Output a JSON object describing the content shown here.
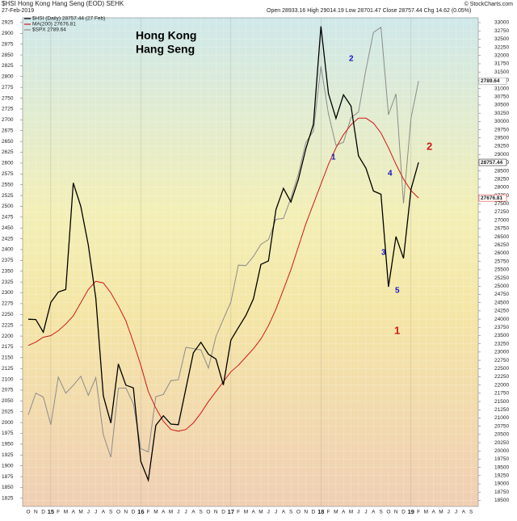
{
  "chart_data": {
    "type": "line",
    "symbol": "$HSI Hong Kong Hang Seng (EOD) SEHK",
    "date": "27-Feb-2019",
    "source": "© StockCharts.com",
    "quote": "Open 28933.16  High 29014.19  Low 28701.47  Close 28757.44  Chg 14.62 (0.05%)",
    "annotations": [
      {
        "text": "Hong Kong",
        "color": "#000000"
      },
      {
        "text": "Hang Seng",
        "color": "#000000"
      },
      {
        "text": "1",
        "color": "#1515c8"
      },
      {
        "text": "2",
        "color": "#1515c8"
      },
      {
        "text": "3",
        "color": "#1515c8"
      },
      {
        "text": "4",
        "color": "#1515c8"
      },
      {
        "text": "5",
        "color": "#1515c8"
      },
      {
        "text": "1",
        "color": "#d01818"
      },
      {
        "text": "2",
        "color": "#d01818"
      }
    ],
    "categories": [
      "O",
      "N",
      "D",
      "15",
      "F",
      "M",
      "A",
      "M",
      "J",
      "J",
      "A",
      "S",
      "O",
      "N",
      "D",
      "16",
      "F",
      "M",
      "A",
      "M",
      "J",
      "J",
      "A",
      "S",
      "O",
      "N",
      "D",
      "17",
      "F",
      "M",
      "A",
      "M",
      "J",
      "J",
      "A",
      "S",
      "O",
      "N",
      "D",
      "18",
      "F",
      "M",
      "A",
      "M",
      "J",
      "J",
      "A",
      "S",
      "O",
      "N",
      "D",
      "19",
      "F",
      "M",
      "A",
      "M",
      "J",
      "J",
      "A",
      "S"
    ],
    "series": [
      {
        "name": "$HSI (Daily) 28757.44 (27 Feb)",
        "color": "#000000",
        "axis": "y2",
        "end_label": "28757.44",
        "values": [
          23998,
          23987,
          23605,
          24507,
          24823,
          24900,
          28133,
          27424,
          26250,
          24636,
          21671,
          20846,
          22640,
          21996,
          21914,
          19683,
          19112,
          20777,
          21067,
          20815,
          20794,
          21891,
          22977,
          23297,
          22935,
          22790,
          22001,
          23361,
          23741,
          24112,
          24615,
          25661,
          25765,
          27324,
          27970,
          27554,
          28246,
          29177,
          29919,
          32887,
          30845,
          30093,
          30808,
          30469,
          28955,
          28583,
          27889,
          27789,
          24980,
          26507,
          25846,
          27942,
          28757.44,
          null,
          null,
          null,
          null,
          null,
          null,
          null
        ]
      },
      {
        "name": "MA(200) 27676.81",
        "color": "#d01818",
        "axis": "y2",
        "end_label": "27676.81",
        "values": [
          23200,
          23300,
          23450,
          23500,
          23650,
          23850,
          24100,
          24500,
          24900,
          25150,
          25100,
          24800,
          24400,
          23950,
          23300,
          22600,
          21800,
          21300,
          20900,
          20650,
          20600,
          20650,
          20850,
          21150,
          21500,
          21800,
          22100,
          22400,
          22600,
          22850,
          23100,
          23400,
          23800,
          24300,
          24900,
          25500,
          26200,
          26900,
          27500,
          28100,
          28700,
          29200,
          29600,
          29900,
          30100,
          30100,
          29950,
          29650,
          29200,
          28700,
          28250,
          27900,
          27676.81,
          null,
          null,
          null,
          null,
          null,
          null,
          null
        ]
      },
      {
        "name": "$SPX 2789.64",
        "color": "#8c8c8c",
        "axis": "y",
        "end_label": "2789.64",
        "values": [
          2018,
          2068,
          2059,
          1995,
          2105,
          2068,
          2086,
          2107,
          2063,
          2104,
          1972,
          1920,
          2079,
          2080,
          2044,
          1940,
          1932,
          2060,
          2065,
          2097,
          2099,
          2174,
          2171,
          2168,
          2126,
          2199,
          2239,
          2279,
          2364,
          2363,
          2384,
          2412,
          2423,
          2470,
          2472,
          2519,
          2575,
          2648,
          2674,
          2824,
          2714,
          2641,
          2648,
          2705,
          2718,
          2816,
          2902,
          2914,
          2712,
          2760,
          2507,
          2704,
          2789.64,
          null,
          null,
          null,
          null,
          null,
          null,
          null
        ]
      }
    ],
    "ylim": [
      1806,
      2936
    ],
    "yticks": [
      1825,
      1850,
      1875,
      1900,
      1925,
      1950,
      1975,
      2000,
      2025,
      2050,
      2075,
      2100,
      2125,
      2150,
      2175,
      2200,
      2225,
      2250,
      2275,
      2300,
      2325,
      2350,
      2375,
      2400,
      2425,
      2450,
      2475,
      2500,
      2525,
      2550,
      2575,
      2600,
      2625,
      2650,
      2675,
      2700,
      2725,
      2750,
      2775,
      2800,
      2825,
      2850,
      2875,
      2900,
      2925
    ],
    "y2lim": [
      18314,
      33147
    ],
    "y2ticks": [
      18500,
      18750,
      19000,
      19250,
      19500,
      19750,
      20000,
      20250,
      20500,
      20750,
      21000,
      21250,
      21500,
      21750,
      22000,
      22250,
      22500,
      22750,
      23000,
      23250,
      23500,
      23750,
      24000,
      24250,
      24500,
      24750,
      25000,
      25250,
      25500,
      25750,
      26000,
      26250,
      26500,
      26750,
      27000,
      27250,
      27500,
      27750,
      28000,
      28250,
      28500,
      28750,
      29000,
      29250,
      29500,
      29750,
      30000,
      30250,
      30500,
      30750,
      31000,
      31250,
      31500,
      31750,
      32000,
      32250,
      32500,
      32750,
      33000
    ],
    "grid": true
  }
}
